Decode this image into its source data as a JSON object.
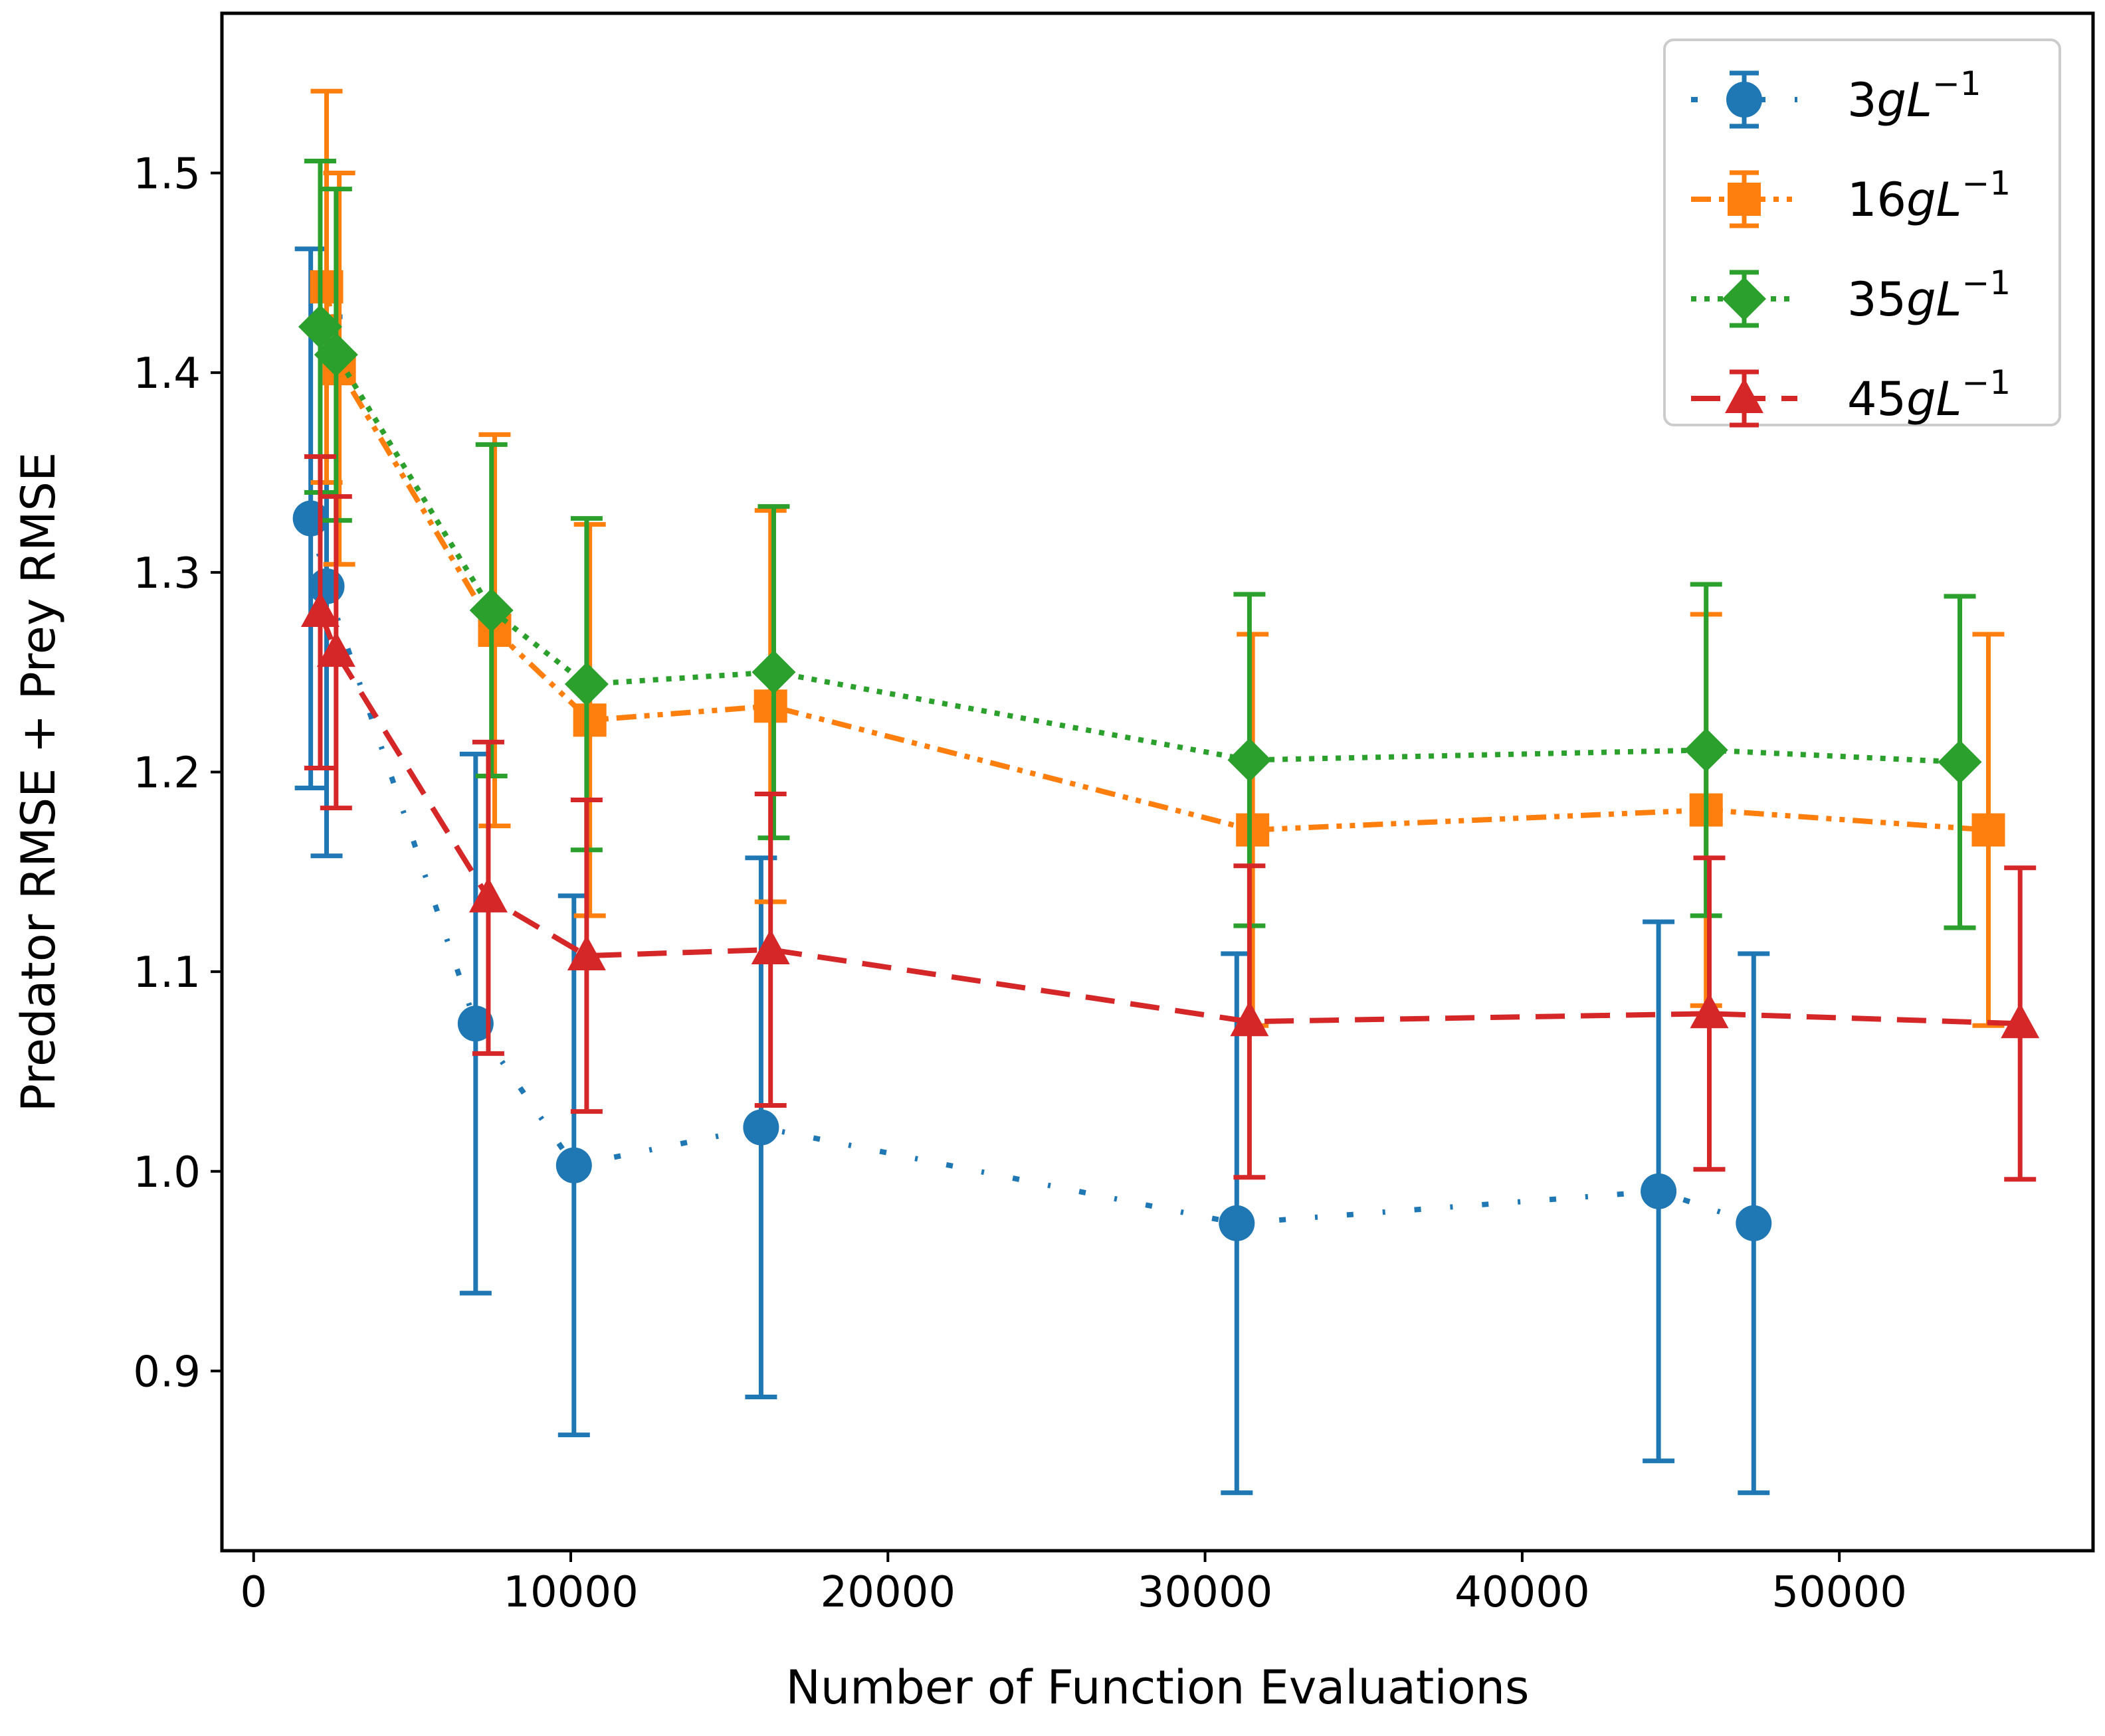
{
  "chart_data": {
    "type": "line",
    "xlabel": "Number of Function Evaluations",
    "ylabel": "Predator RMSE + Prey RMSE",
    "xlim": [
      -1000,
      58000
    ],
    "ylim": [
      0.81,
      1.58
    ],
    "xticks": [
      0,
      10000,
      20000,
      30000,
      40000,
      50000
    ],
    "yticks": [
      0.9,
      1.0,
      1.1,
      1.2,
      1.3,
      1.4,
      1.5
    ],
    "xtick_labels": [
      "0",
      "10000",
      "20000",
      "30000",
      "40000",
      "50000"
    ],
    "ytick_labels": [
      "0.9",
      "1.0",
      "1.1",
      "1.2",
      "1.3",
      "1.4",
      "1.5"
    ],
    "grid": false,
    "legend_position": "top-right",
    "series": [
      {
        "legend": {
          "num": "3",
          "g": "g",
          "L": "L",
          "exp": "−1"
        },
        "color": "#1f77b4",
        "marker": "circle",
        "linestyle": "dashdot-loose",
        "x": [
          1800,
          2300,
          7000,
          10100,
          16000,
          31000,
          44300,
          47300
        ],
        "y": [
          1.327,
          1.293,
          1.074,
          1.003,
          1.022,
          0.974,
          0.99,
          0.974
        ],
        "err": [
          0.135,
          0.135,
          0.135,
          0.135,
          0.135,
          0.135,
          0.135,
          0.135
        ]
      },
      {
        "legend": {
          "num": "16",
          "g": "g",
          "L": "L",
          "exp": "−1"
        },
        "color": "#ff7f0e",
        "marker": "square",
        "linestyle": "dashdotdot",
        "x": [
          2300,
          2700,
          7600,
          10600,
          16300,
          31500,
          45800,
          54700
        ],
        "y": [
          1.443,
          1.402,
          1.271,
          1.226,
          1.233,
          1.171,
          1.181,
          1.171
        ],
        "err": [
          0.098,
          0.098,
          0.098,
          0.098,
          0.098,
          0.098,
          0.098,
          0.098
        ]
      },
      {
        "legend": {
          "num": "35",
          "g": "g",
          "L": "L",
          "exp": "−1"
        },
        "color": "#2ca02c",
        "marker": "diamond",
        "linestyle": "dotted",
        "x": [
          2100,
          2600,
          7500,
          10500,
          16400,
          31400,
          45800,
          53800
        ],
        "y": [
          1.423,
          1.409,
          1.281,
          1.244,
          1.25,
          1.206,
          1.211,
          1.205
        ],
        "err": [
          0.083,
          0.083,
          0.083,
          0.083,
          0.083,
          0.083,
          0.083,
          0.083
        ]
      },
      {
        "legend": {
          "num": "45",
          "g": "g",
          "L": "L",
          "exp": "−1"
        },
        "color": "#d62728",
        "marker": "triangle",
        "linestyle": "dashed",
        "x": [
          2100,
          2600,
          7400,
          10500,
          16300,
          31400,
          45900,
          55700
        ],
        "y": [
          1.28,
          1.26,
          1.137,
          1.108,
          1.111,
          1.075,
          1.079,
          1.074
        ],
        "err": [
          0.078,
          0.078,
          0.078,
          0.078,
          0.078,
          0.078,
          0.078,
          0.078
        ]
      }
    ]
  }
}
